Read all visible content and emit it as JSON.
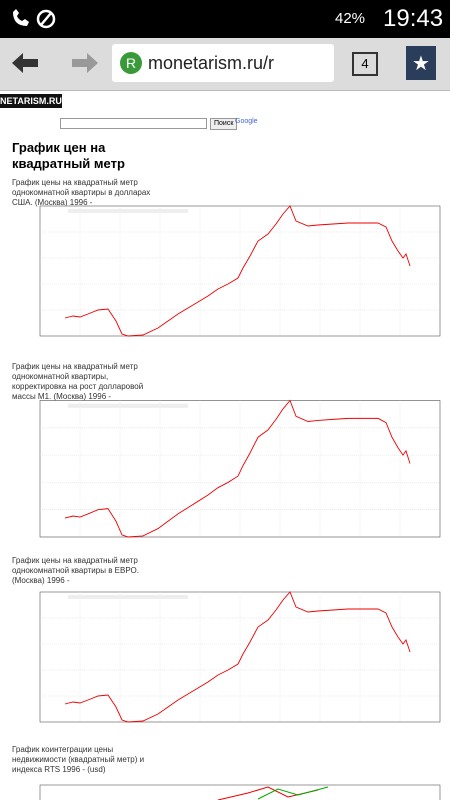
{
  "status_bar": {
    "battery": "42%",
    "time": "19:43"
  },
  "toolbar": {
    "url": "monetarism.ru/r",
    "tab_count": "4"
  },
  "site": {
    "logo": "NETARISM.RU",
    "search_button": "Поиск",
    "search_provider": "Google"
  },
  "page": {
    "heading": "График цен на квадратный метр",
    "captions": [
      "График цены на квадратный метр однокомнатной квартиры в долларах США. (Москва) 1996 -",
      "График цены на квадратный метр однокомнатной квартиры, корректировка на рост долларовой массы M1. (Москва) 1996 -",
      "График цены на квадратный метр однокомнатной квартиры в ЕВРО. (Москва) 1996 -",
      "График коинтеграции цены недвижимости (квадратный метр) и индекса RTS 1996 - (usd)"
    ]
  }
}
